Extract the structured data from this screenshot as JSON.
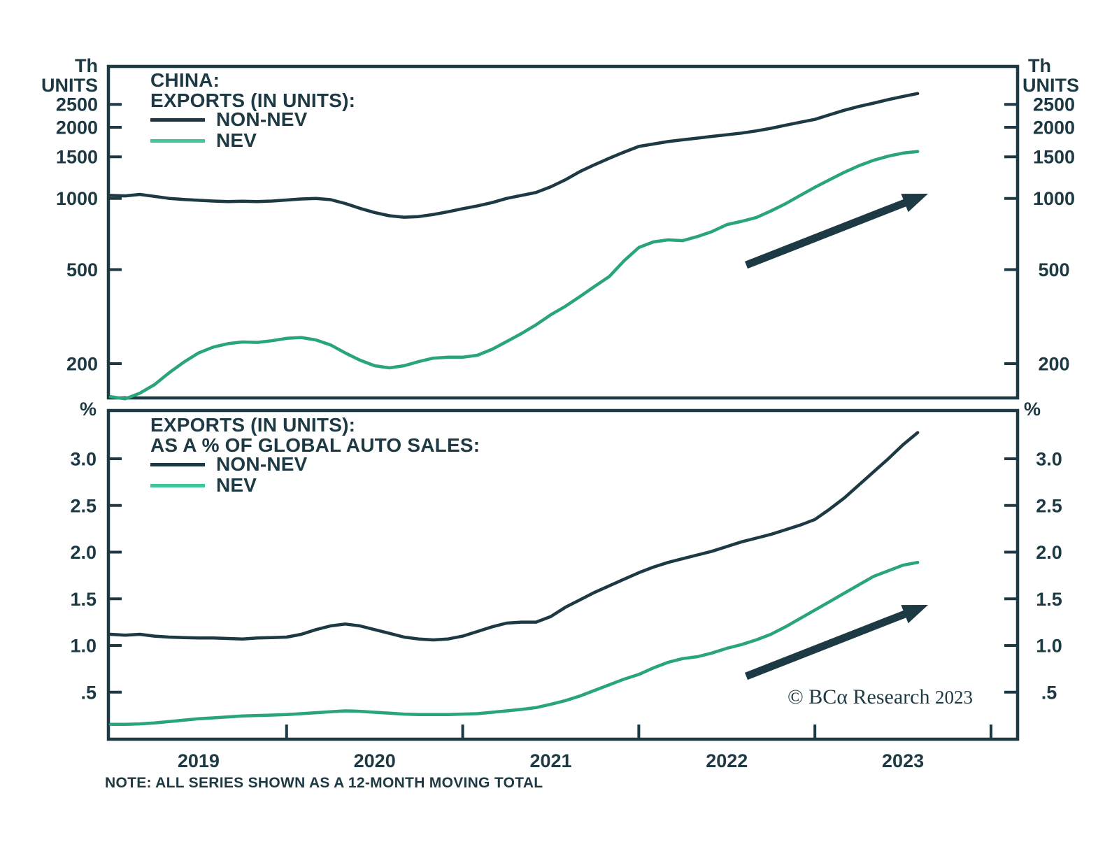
{
  "figure": {
    "note": "NOTE: ALL SERIES SHOWN AS A 12-MONTH MOVING TOTAL",
    "copyright_text": "© BCα Research",
    "copyright_year": "2023",
    "colors": {
      "dark": "#1d3a44",
      "green": "#29a47c",
      "legend_green": "#3fc69b",
      "text": "#1d3a44",
      "background": "#ffffff"
    }
  },
  "top_panel": {
    "unit_line1": "Th",
    "unit_line2": "UNITS",
    "title_line1": "CHINA:",
    "title_line2": "EXPORTS (IN UNITS):",
    "legend": [
      {
        "label": "NON-NEV",
        "color": "dark"
      },
      {
        "label": "NEV",
        "color": "legend_green"
      }
    ],
    "y_ticks": [
      "2500",
      "2000",
      "1500",
      "1000",
      "500",
      "200"
    ]
  },
  "bottom_panel": {
    "unit": "%",
    "title_line1": "EXPORTS (IN UNITS):",
    "title_line2": "AS A % OF GLOBAL AUTO SALES:",
    "legend": [
      {
        "label": "NON-NEV",
        "color": "dark"
      },
      {
        "label": "NEV",
        "color": "legend_green"
      }
    ],
    "y_ticks": [
      "3.0",
      "2.5",
      "2.0",
      "1.5",
      "1.0",
      ".5"
    ]
  },
  "x_axis": {
    "year_labels": [
      "2019",
      "2020",
      "2021",
      "2022",
      "2023"
    ]
  },
  "chart_data": [
    {
      "type": "line",
      "panel": "top",
      "title": "CHINA: EXPORTS (IN UNITS)",
      "ylabel": "Th UNITS",
      "yscale": "log",
      "ylim": [
        150,
        3700
      ],
      "y_tick_values": [
        2500,
        2000,
        1500,
        1000,
        500,
        200
      ],
      "x_start": "2019-01",
      "x_end": "2023-08",
      "x_freq": "monthly",
      "legend_position": "top-left-inside",
      "grid": false,
      "series": [
        {
          "name": "NON-NEV",
          "color": "dark",
          "values": [
            1030,
            1025,
            1040,
            1020,
            1000,
            990,
            982,
            975,
            970,
            973,
            970,
            975,
            985,
            995,
            1000,
            988,
            952,
            908,
            872,
            845,
            833,
            838,
            855,
            878,
            905,
            930,
            960,
            1000,
            1030,
            1060,
            1120,
            1200,
            1300,
            1390,
            1480,
            1570,
            1660,
            1700,
            1740,
            1770,
            1800,
            1830,
            1860,
            1890,
            1930,
            1980,
            2040,
            2100,
            2160,
            2260,
            2360,
            2450,
            2530,
            2620,
            2700,
            2780
          ]
        },
        {
          "name": "NEV",
          "color": "green",
          "values": [
            145,
            142,
            150,
            163,
            183,
            203,
            222,
            235,
            243,
            247,
            246,
            250,
            256,
            258,
            252,
            240,
            222,
            207,
            196,
            192,
            196,
            204,
            211,
            213,
            213,
            217,
            230,
            248,
            268,
            292,
            322,
            350,
            385,
            425,
            468,
            545,
            620,
            655,
            668,
            663,
            690,
            725,
            775,
            800,
            830,
            885,
            950,
            1030,
            1115,
            1200,
            1290,
            1375,
            1450,
            1510,
            1555,
            1580
          ]
        }
      ]
    },
    {
      "type": "line",
      "panel": "bottom",
      "title": "EXPORTS (IN UNITS): AS A % OF GLOBAL AUTO SALES",
      "ylabel": "%",
      "yscale": "linear",
      "ylim": [
        0,
        3.65
      ],
      "y_tick_values": [
        3.0,
        2.5,
        2.0,
        1.5,
        1.0,
        0.5
      ],
      "x_start": "2019-01",
      "x_end": "2023-08",
      "x_freq": "monthly",
      "legend_position": "top-left-inside",
      "grid": false,
      "series": [
        {
          "name": "NON-NEV",
          "color": "dark",
          "values": [
            1.12,
            1.11,
            1.12,
            1.1,
            1.09,
            1.085,
            1.08,
            1.08,
            1.075,
            1.07,
            1.08,
            1.085,
            1.09,
            1.12,
            1.17,
            1.21,
            1.23,
            1.21,
            1.17,
            1.13,
            1.09,
            1.07,
            1.06,
            1.07,
            1.1,
            1.15,
            1.2,
            1.24,
            1.25,
            1.25,
            1.31,
            1.41,
            1.49,
            1.57,
            1.64,
            1.71,
            1.78,
            1.84,
            1.89,
            1.93,
            1.97,
            2.01,
            2.06,
            2.11,
            2.15,
            2.19,
            2.24,
            2.29,
            2.35,
            2.46,
            2.58,
            2.72,
            2.86,
            3.0,
            3.15,
            3.28
          ]
        },
        {
          "name": "NEV",
          "color": "green",
          "values": [
            0.155,
            0.155,
            0.16,
            0.17,
            0.185,
            0.2,
            0.215,
            0.225,
            0.235,
            0.245,
            0.25,
            0.255,
            0.26,
            0.27,
            0.28,
            0.29,
            0.3,
            0.295,
            0.285,
            0.275,
            0.265,
            0.26,
            0.26,
            0.26,
            0.265,
            0.27,
            0.285,
            0.3,
            0.315,
            0.335,
            0.37,
            0.41,
            0.46,
            0.52,
            0.58,
            0.64,
            0.69,
            0.76,
            0.82,
            0.86,
            0.88,
            0.92,
            0.97,
            1.01,
            1.06,
            1.12,
            1.2,
            1.29,
            1.38,
            1.47,
            1.56,
            1.65,
            1.74,
            1.8,
            1.86,
            1.89
          ]
        }
      ]
    }
  ]
}
